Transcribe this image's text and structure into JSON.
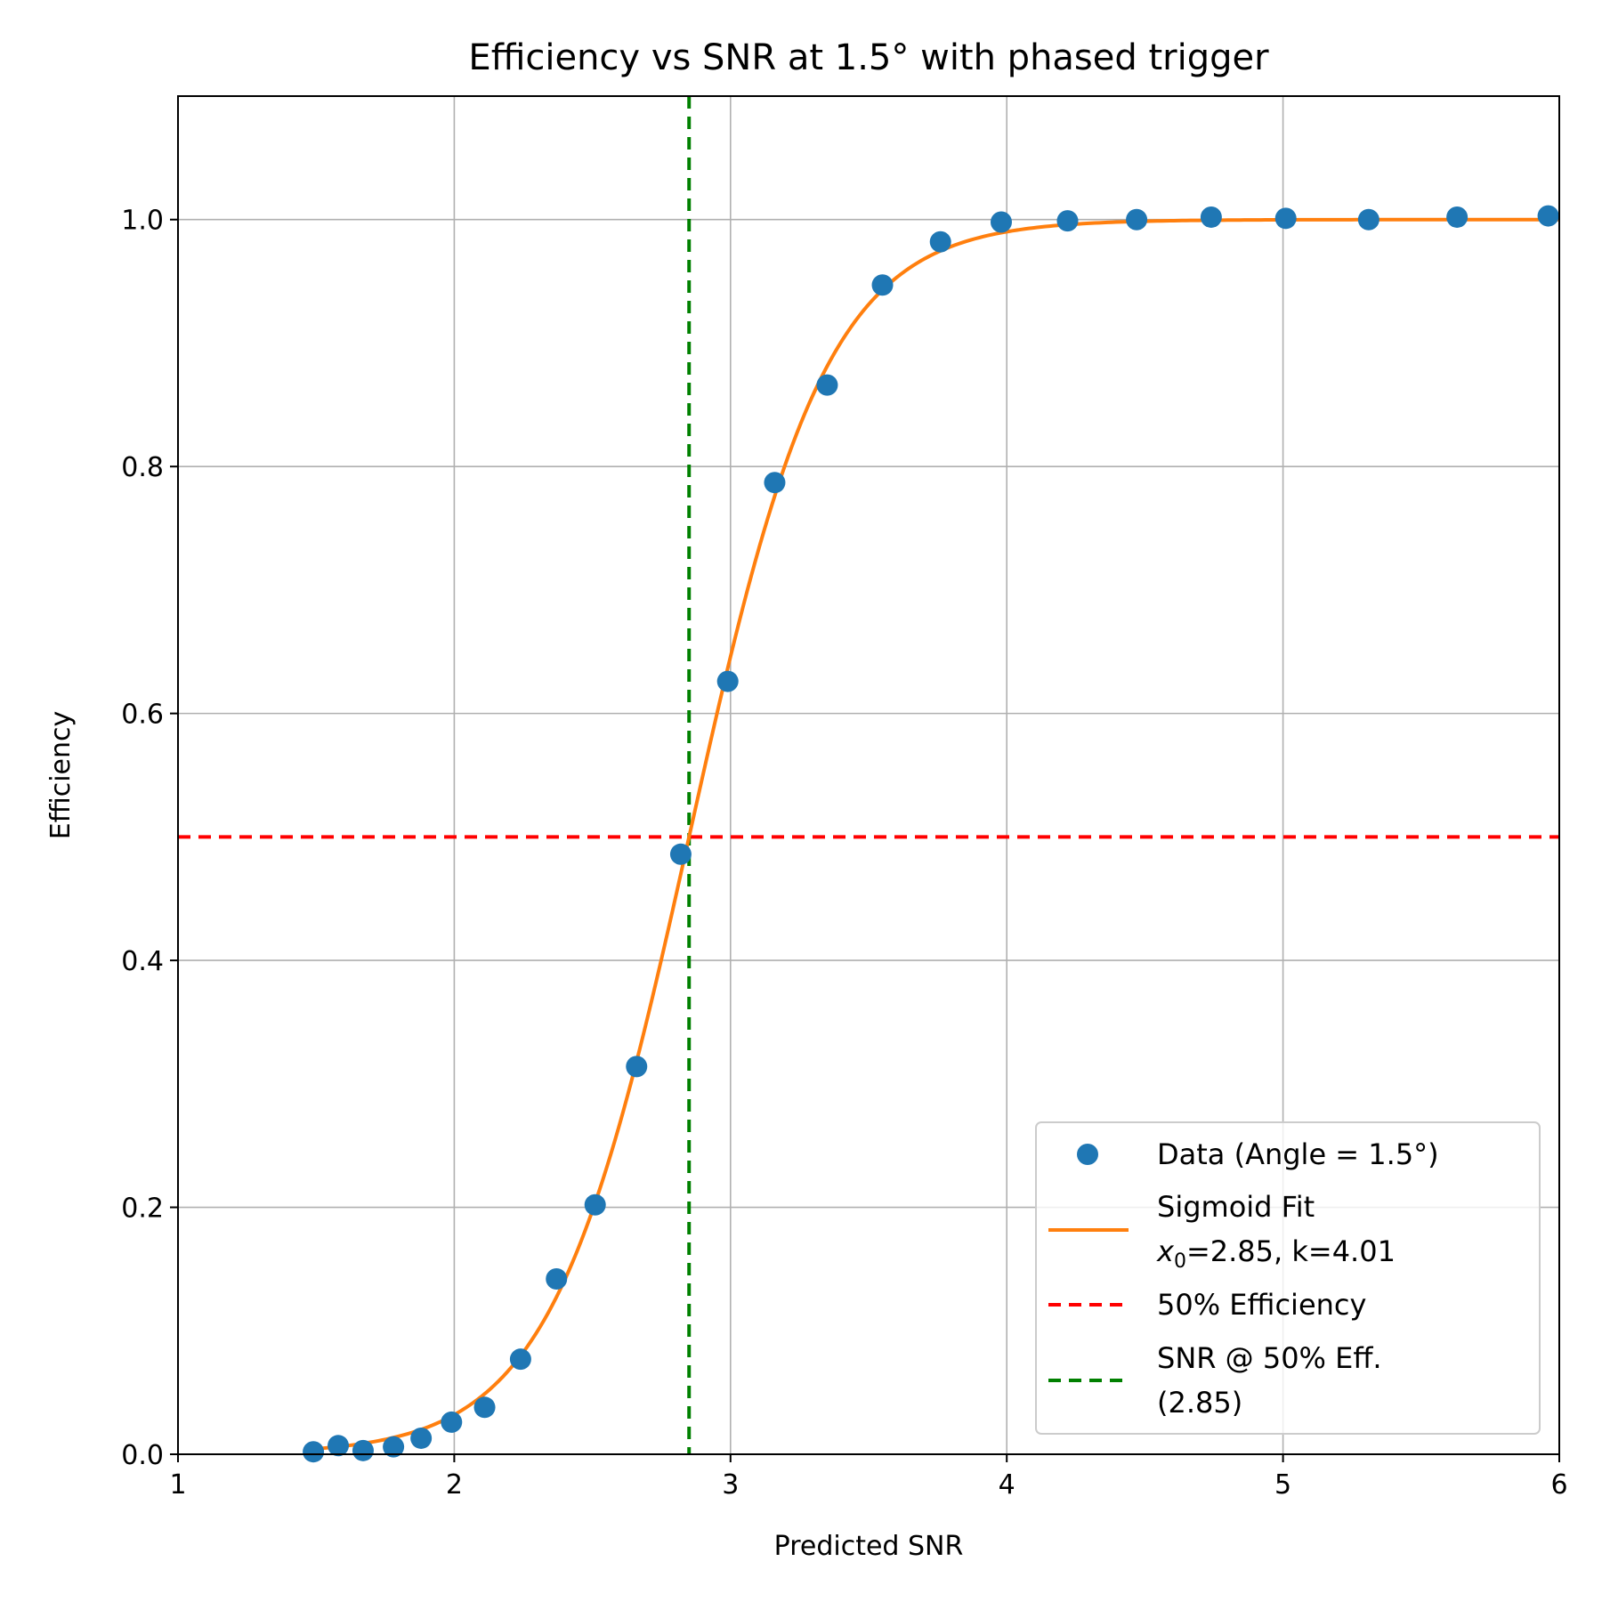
{
  "chart_data": {
    "type": "scatter",
    "title": "Efficiency vs SNR at 1.5° with phased trigger",
    "xlabel": "Predicted SNR",
    "ylabel": "Efficiency",
    "xlim": [
      1,
      6
    ],
    "ylim": [
      0,
      1.1
    ],
    "xticks": [
      1,
      2,
      3,
      4,
      5,
      6
    ],
    "xtick_labels": [
      "1",
      "2",
      "3",
      "4",
      "5",
      "6"
    ],
    "yticks": [
      0.0,
      0.2,
      0.4,
      0.6,
      0.8,
      1.0
    ],
    "ytick_labels": [
      "0.0",
      "0.2",
      "0.4",
      "0.6",
      "0.8",
      "1.0"
    ],
    "grid": true,
    "legend_position": "lower-right",
    "series": [
      {
        "name": "Data (Angle = 1.5°)",
        "kind": "markers",
        "color": "#1f77b4",
        "x": [
          1.49,
          1.58,
          1.67,
          1.78,
          1.88,
          1.99,
          2.11,
          2.24,
          2.37,
          2.51,
          2.66,
          2.82,
          2.99,
          3.16,
          3.35,
          3.55,
          3.76,
          3.98,
          4.22,
          4.47,
          4.74,
          5.01,
          5.31,
          5.63,
          5.96
        ],
        "y": [
          0.002,
          0.007,
          0.003,
          0.006,
          0.013,
          0.026,
          0.038,
          0.077,
          0.142,
          0.202,
          0.314,
          0.486,
          0.626,
          0.787,
          0.866,
          0.947,
          0.982,
          0.998,
          0.999,
          1.0,
          1.002,
          1.001,
          1.0,
          1.002,
          1.003
        ]
      },
      {
        "name": "Sigmoid Fit",
        "name_line2_symbol": "x",
        "name_line2_subscript": "0",
        "name_line2_rest": "=2.85, k=4.01",
        "kind": "line",
        "color": "#ff7f0e",
        "function": "sigmoid",
        "x0": 2.85,
        "k": 4.01,
        "x_range": [
          1.5,
          6.0
        ]
      },
      {
        "name": "50% Efficiency",
        "kind": "hline",
        "style": "dashed",
        "color": "#ff0000",
        "y": 0.5
      },
      {
        "name": "SNR @ 50% Eff.",
        "name_line2": "(2.85)",
        "kind": "vline",
        "style": "dashed",
        "color": "#008000",
        "x": 2.85
      }
    ]
  }
}
